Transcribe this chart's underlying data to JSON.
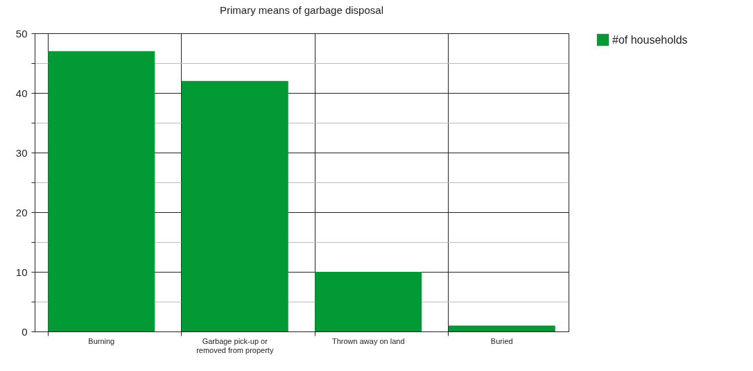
{
  "chart_data": {
    "type": "bar",
    "title": "Primary means of garbage disposal",
    "categories": [
      "Burning",
      "Garbage pick-up or removed from property",
      "Thrown away on land",
      "Buried"
    ],
    "series": [
      {
        "name": "#of households",
        "color": "#029a35",
        "values": [
          47,
          42,
          10,
          1
        ]
      }
    ],
    "ylim": [
      0,
      50
    ],
    "yticks": [
      0,
      {
        "value": 5,
        "label": null
      },
      10,
      {
        "value": 15,
        "label": null
      },
      20,
      {
        "value": 25,
        "label": null
      },
      30,
      {
        "value": 35,
        "label": null
      },
      40,
      {
        "value": 45,
        "label": null
      },
      50
    ],
    "grid": true,
    "legend": "right"
  }
}
